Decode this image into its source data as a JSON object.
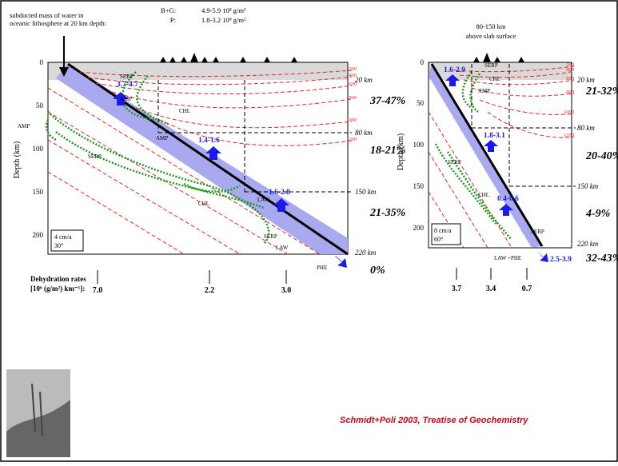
{
  "left_panel": {
    "top_note": [
      "subducted mass of water in",
      "oceanic lithosphere at 20 km depth:"
    ],
    "legend": [
      {
        "label": "B+G:",
        "value": "4.9-5.9 10⁸ g/m²"
      },
      {
        "label": "P:",
        "value": "1.8-3.2 10⁸ g/m²"
      }
    ],
    "y_axis_label": "Depth (km)",
    "y_ticks": [
      "0",
      "50",
      "100",
      "150",
      "200"
    ],
    "depth_marks": [
      "20 km",
      "80 km",
      "150 km",
      "220 km"
    ],
    "percentages": [
      "37-47%",
      "18-21%",
      "21-35%",
      "0%"
    ],
    "fluxes": [
      "3.7-4.7",
      "1.4-1.6",
      "1.6-2.8"
    ],
    "isotherms": [
      "200",
      "400",
      "600",
      "800",
      "1000",
      "1200"
    ],
    "phases": [
      "SERP",
      "AMP",
      "CHL",
      "AMP",
      "AMP",
      "SERP",
      "CHL",
      "LAW",
      "SERP",
      "LAW",
      "PHE"
    ],
    "convergence": [
      "4 cm/a",
      "30°"
    ],
    "dehydration_label": [
      "Dehydration rates",
      "[10⁶ (g/m²) km⁻¹]:"
    ],
    "dehydration_rates": [
      "7.0",
      "2.2",
      "3.0"
    ]
  },
  "right_panel": {
    "top_note": [
      "80-150 km",
      "above slab surface"
    ],
    "y_axis_label": "Depth (km)",
    "y_ticks": [
      "0",
      "50",
      "100",
      "150",
      "200"
    ],
    "depth_marks": [
      "20 km",
      "80 km",
      "150 km",
      "220 km"
    ],
    "percentages": [
      "21-32%",
      "20-40%",
      "4-9%",
      "32-43%"
    ],
    "fluxes": [
      "1.6-2.9",
      "1.8-3.1",
      "0.4-0.6",
      "2.5-3.9"
    ],
    "isotherms": [
      "200",
      "400",
      "600",
      "800",
      "1000",
      "1200"
    ],
    "phases": [
      "SERP",
      "CHL",
      "AMP",
      "SERP",
      "CHL",
      "SERP",
      "LAW +PHE"
    ],
    "convergence": [
      "8 cm/a",
      "60°"
    ],
    "dehydration_rates": [
      "3.7",
      "3.4",
      "0.7"
    ]
  },
  "citation": "Schmidt+Poli 2003, Treatise of Geochemistry"
}
